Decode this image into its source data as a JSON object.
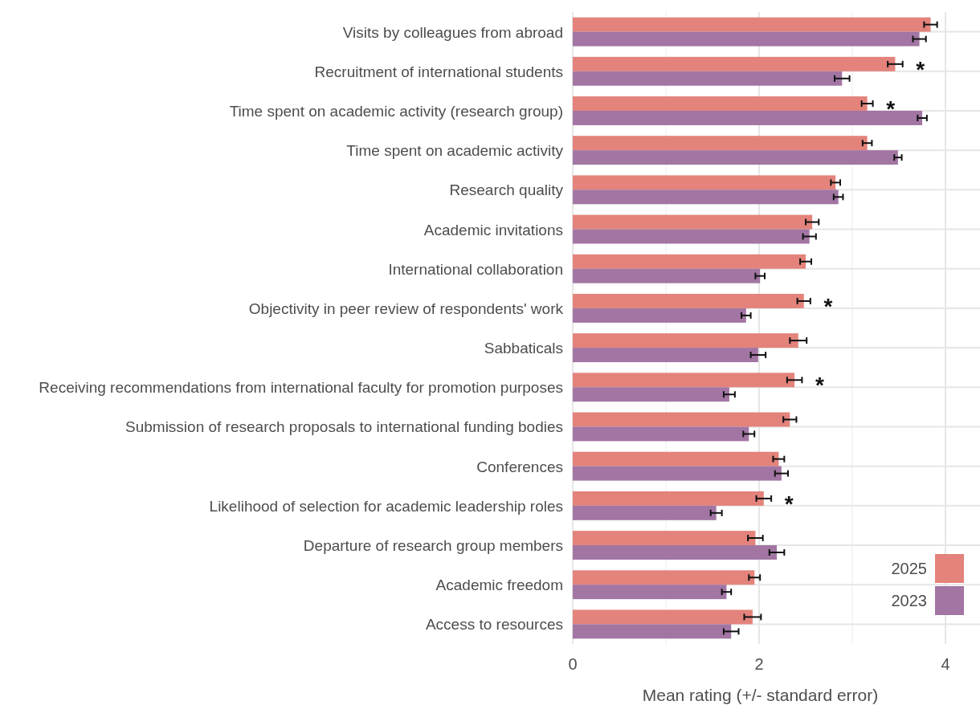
{
  "chart_data": {
    "type": "bar",
    "orientation": "horizontal",
    "xlabel": "Mean rating (+/- standard error)",
    "categories": [
      "Visits by colleagues from abroad",
      "Recruitment of international students",
      "Time spent on academic activity (research group)",
      "Time spent on academic activity",
      "Research quality",
      "Academic invitations",
      "International collaboration",
      "Objectivity in peer review of respondents' work",
      "Sabbaticals",
      "Receiving recommendations from international faculty for promotion purposes",
      "Submission of research proposals to international funding bodies",
      "Conferences",
      "Likelihood of selection for academic leadership roles",
      "Departure of research group members",
      "Academic freedom",
      "Access to resources"
    ],
    "series": [
      {
        "name": "2025",
        "color": "#e3837b",
        "values": [
          3.84,
          3.46,
          3.16,
          3.16,
          2.82,
          2.57,
          2.5,
          2.48,
          2.42,
          2.38,
          2.33,
          2.21,
          2.05,
          1.96,
          1.95,
          1.93
        ],
        "errors": [
          0.07,
          0.08,
          0.06,
          0.05,
          0.05,
          0.07,
          0.06,
          0.07,
          0.09,
          0.08,
          0.07,
          0.06,
          0.08,
          0.08,
          0.06,
          0.09
        ],
        "value_labels": [
          null,
          "*",
          "*",
          null,
          null,
          null,
          null,
          "*",
          null,
          "*",
          null,
          null,
          "*",
          null,
          null,
          null
        ]
      },
      {
        "name": "2023",
        "color": "#a275a3",
        "values": [
          3.72,
          2.89,
          3.75,
          3.49,
          2.85,
          2.54,
          2.01,
          1.86,
          1.99,
          1.68,
          1.89,
          2.24,
          1.54,
          2.19,
          1.65,
          1.7
        ],
        "errors": [
          0.07,
          0.08,
          0.05,
          0.04,
          0.05,
          0.07,
          0.05,
          0.05,
          0.08,
          0.06,
          0.06,
          0.07,
          0.06,
          0.08,
          0.05,
          0.08
        ]
      }
    ],
    "xlim": [
      0,
      4.37
    ],
    "xticks": [
      0,
      {
        "value": 1,
        "label": null
      },
      2,
      {
        "value": 3,
        "label": null
      },
      4
    ],
    "grid": true,
    "legend": "bottom right"
  }
}
